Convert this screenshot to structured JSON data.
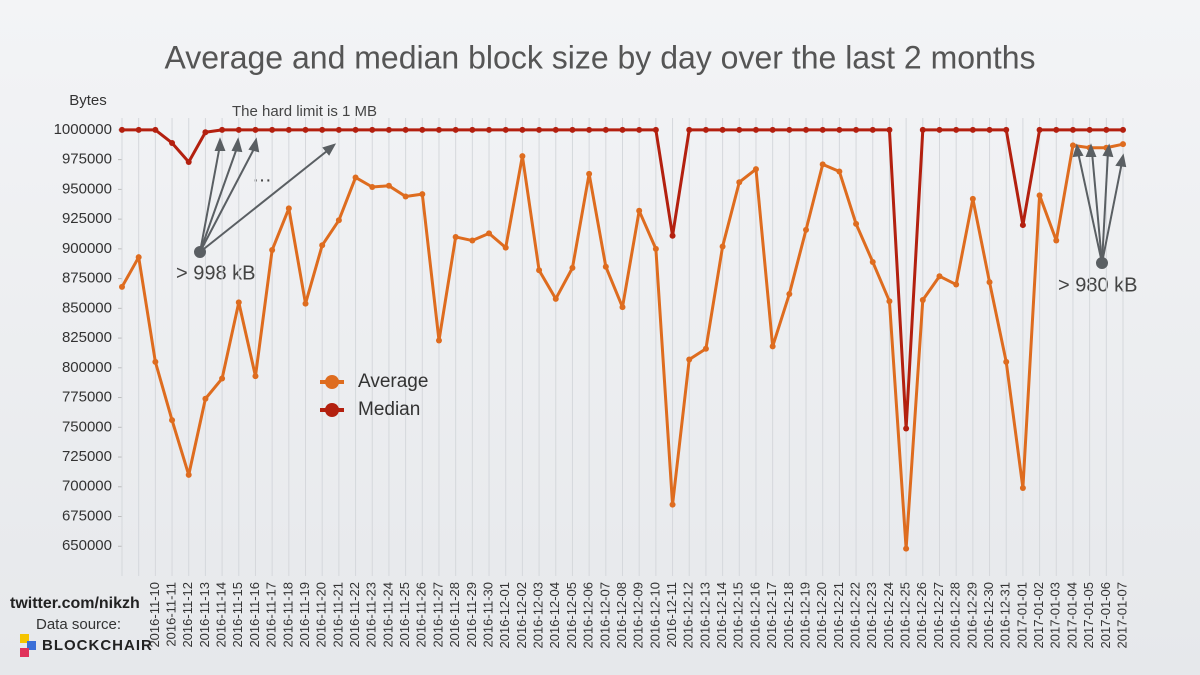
{
  "chart_data": {
    "type": "line",
    "title": "Average and median block size by day over the last 2 months",
    "y_label": "Bytes",
    "annotations": {
      "limit": "The hard limit is 1 MB",
      "dots": "…",
      "left": "> 998 kB",
      "right": "> 980 kB"
    },
    "credits": {
      "twitter": "twitter.com/nikzh",
      "source": "Data source:",
      "brand": "BLOCKCHAIR"
    },
    "categories": [
      null,
      null,
      "2016-11-10",
      "2016-11-11",
      "2016-11-12",
      "2016-11-13",
      "2016-11-14",
      "2016-11-15",
      "2016-11-16",
      "2016-11-17",
      "2016-11-18",
      "2016-11-19",
      "2016-11-20",
      "2016-11-21",
      "2016-11-22",
      "2016-11-23",
      "2016-11-24",
      "2016-11-25",
      "2016-11-26",
      "2016-11-27",
      "2016-11-28",
      "2016-11-29",
      "2016-11-30",
      "2016-12-01",
      "2016-12-02",
      "2016-12-03",
      "2016-12-04",
      "2016-12-05",
      "2016-12-06",
      "2016-12-07",
      "2016-12-08",
      "2016-12-09",
      "2016-12-10",
      "2016-12-11",
      "2016-12-12",
      "2016-12-13",
      "2016-12-14",
      "2016-12-15",
      "2016-12-16",
      "2016-12-17",
      "2016-12-18",
      "2016-12-19",
      "2016-12-20",
      "2016-12-21",
      "2016-12-22",
      "2016-12-23",
      "2016-12-24",
      "2016-12-25",
      "2016-12-26",
      "2016-12-27",
      "2016-12-28",
      "2016-12-29",
      "2016-12-30",
      "2016-12-31",
      "2017-01-01",
      "2017-01-02",
      "2017-01-03",
      "2017-01-04",
      "2017-01-05",
      "2017-01-06",
      "2017-01-07"
    ],
    "series": [
      {
        "name": "Average",
        "color": "#de6c1f",
        "values": [
          868000,
          893000,
          805000,
          756000,
          710000,
          774000,
          791000,
          855000,
          793000,
          899000,
          934000,
          854000,
          903000,
          924000,
          960000,
          952000,
          953000,
          944000,
          946000,
          823000,
          910000,
          907000,
          913000,
          901000,
          978000,
          882000,
          858000,
          884000,
          963000,
          885000,
          851000,
          932000,
          900000,
          685000,
          807000,
          816000,
          902000,
          956000,
          967000,
          818000,
          862000,
          916000,
          971000,
          965000,
          921000,
          889000,
          856000,
          648000,
          857000,
          877000,
          870000,
          942000,
          872000,
          805000,
          699000,
          945000,
          907000,
          987000,
          985000,
          985000,
          988000
        ]
      },
      {
        "name": "Median",
        "color": "#b3200f",
        "values": [
          1000000,
          1000000,
          1000000,
          989000,
          973000,
          998000,
          1000000,
          1000000,
          1000000,
          1000000,
          1000000,
          1000000,
          1000000,
          1000000,
          1000000,
          1000000,
          1000000,
          1000000,
          1000000,
          1000000,
          1000000,
          1000000,
          1000000,
          1000000,
          1000000,
          1000000,
          1000000,
          1000000,
          1000000,
          1000000,
          1000000,
          1000000,
          1000000,
          911000,
          1000000,
          1000000,
          1000000,
          1000000,
          1000000,
          1000000,
          1000000,
          1000000,
          1000000,
          1000000,
          1000000,
          1000000,
          1000000,
          749000,
          1000000,
          1000000,
          1000000,
          1000000,
          1000000,
          1000000,
          920000,
          1000000,
          1000000,
          1000000,
          1000000,
          1000000,
          1000000
        ]
      }
    ],
    "ylim": [
      625000,
      1010000
    ],
    "yticks": [
      650000,
      675000,
      700000,
      725000,
      750000,
      775000,
      800000,
      825000,
      850000,
      875000,
      900000,
      925000,
      950000,
      975000,
      1000000
    ],
    "grid": true
  }
}
